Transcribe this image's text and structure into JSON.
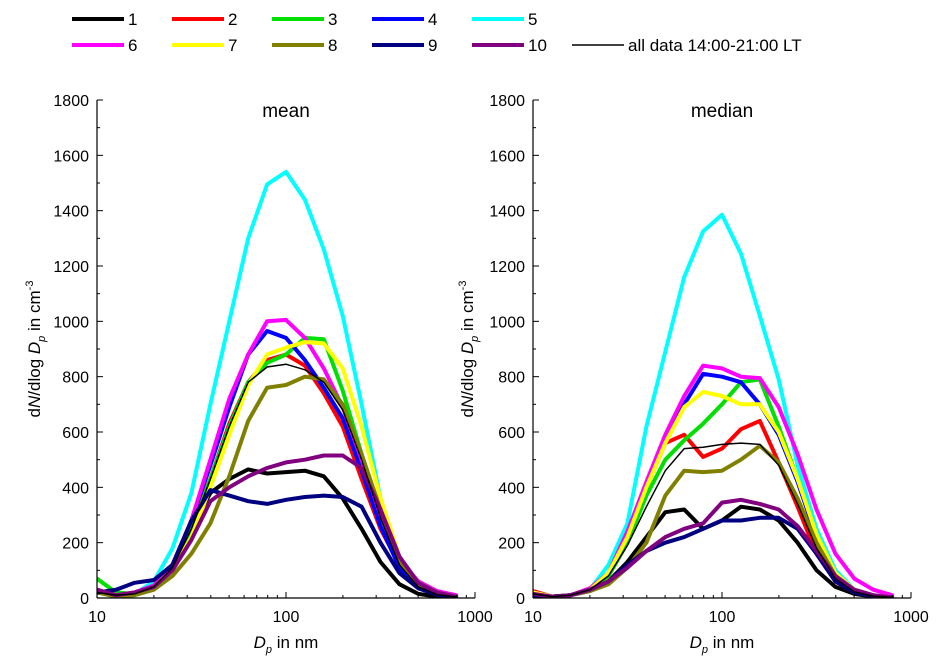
{
  "chart_data": [
    {
      "type": "line",
      "title": "mean",
      "xlabel": "D_p in nm",
      "xlabel_var": "D",
      "xlabel_sub": "p",
      "xlabel_unit": " in nm",
      "ylabel_prefix": "dN/dlog ",
      "ylabel_var": "D",
      "ylabel_sub": "p",
      "ylabel_unit": " in cm",
      "ylabel_exp": "-3",
      "xscale": "log",
      "xlim": [
        10,
        1000
      ],
      "ylim": [
        0,
        1800
      ],
      "xticks": [
        10,
        100,
        1000
      ],
      "yticks": [
        0,
        200,
        400,
        600,
        800,
        1000,
        1200,
        1400,
        1600,
        1800
      ],
      "x": [
        10,
        12.6,
        15.8,
        20,
        25.1,
        31.6,
        39.8,
        50.1,
        63.1,
        79.4,
        100,
        125.9,
        158.5,
        199.5,
        251.2,
        316.2,
        398.1,
        501.2,
        631,
        794.3
      ],
      "series": [
        {
          "name": "1",
          "color": "#000000",
          "values": [
            25,
            10,
            20,
            45,
            110,
            250,
            380,
            430,
            465,
            450,
            455,
            460,
            440,
            360,
            250,
            130,
            50,
            15,
            5,
            2
          ]
        },
        {
          "name": "2",
          "color": "#ff0000",
          "values": [
            20,
            10,
            15,
            40,
            110,
            260,
            430,
            630,
            780,
            860,
            880,
            840,
            740,
            620,
            430,
            250,
            120,
            45,
            15,
            5
          ]
        },
        {
          "name": "3",
          "color": "#00e000",
          "values": [
            70,
            20,
            15,
            40,
            110,
            250,
            430,
            620,
            780,
            850,
            880,
            940,
            935,
            750,
            520,
            300,
            130,
            45,
            15,
            5
          ]
        },
        {
          "name": "4",
          "color": "#0000ff",
          "values": [
            20,
            10,
            15,
            40,
            120,
            280,
            480,
            690,
            880,
            965,
            940,
            860,
            760,
            650,
            460,
            260,
            110,
            40,
            12,
            5
          ]
        },
        {
          "name": "5",
          "color": "#00ffff",
          "values": [
            20,
            10,
            15,
            60,
            180,
            380,
            700,
            1000,
            1300,
            1495,
            1540,
            1440,
            1260,
            1020,
            700,
            360,
            140,
            45,
            15,
            5
          ]
        },
        {
          "name": "6",
          "color": "#ff00ff",
          "values": [
            30,
            10,
            20,
            45,
            120,
            280,
            500,
            720,
            880,
            1000,
            1005,
            940,
            830,
            690,
            500,
            300,
            140,
            60,
            25,
            10
          ]
        },
        {
          "name": "7",
          "color": "#ffff00",
          "values": [
            20,
            10,
            15,
            40,
            100,
            220,
            400,
            590,
            770,
            880,
            905,
            925,
            920,
            830,
            620,
            360,
            150,
            55,
            20,
            5
          ]
        },
        {
          "name": "8",
          "color": "#808000",
          "values": [
            20,
            5,
            10,
            30,
            80,
            160,
            270,
            440,
            640,
            760,
            770,
            800,
            790,
            700,
            520,
            320,
            130,
            45,
            15,
            5
          ]
        },
        {
          "name": "9",
          "color": "#000080",
          "values": [
            20,
            30,
            55,
            65,
            120,
            280,
            390,
            370,
            350,
            340,
            355,
            365,
            370,
            365,
            330,
            200,
            90,
            35,
            12,
            5
          ]
        },
        {
          "name": "10",
          "color": "#800080",
          "values": [
            30,
            10,
            20,
            40,
            100,
            210,
            350,
            400,
            440,
            470,
            490,
            500,
            515,
            515,
            470,
            320,
            150,
            55,
            20,
            5
          ]
        },
        {
          "name": "all data 14:00-21:00 LT",
          "color": "#000000",
          "thin": true,
          "values": [
            20,
            10,
            15,
            40,
            110,
            250,
            430,
            620,
            780,
            835,
            845,
            825,
            780,
            680,
            500,
            290,
            120,
            40,
            12,
            4
          ]
        }
      ]
    },
    {
      "type": "line",
      "title": "median",
      "xlabel": "D_p in nm",
      "xlabel_var": "D",
      "xlabel_sub": "p",
      "xlabel_unit": " in nm",
      "ylabel_prefix": "dN/dlog ",
      "ylabel_var": "D",
      "ylabel_sub": "p",
      "ylabel_unit": " in cm",
      "ylabel_exp": "-3",
      "xscale": "log",
      "xlim": [
        10,
        1000
      ],
      "ylim": [
        0,
        1800
      ],
      "xticks": [
        10,
        100,
        1000
      ],
      "yticks": [
        0,
        200,
        400,
        600,
        800,
        1000,
        1200,
        1400,
        1600,
        1800
      ],
      "x": [
        10,
        12.6,
        15.8,
        20,
        25.1,
        31.6,
        39.8,
        50.1,
        63.1,
        79.4,
        100,
        125.9,
        158.5,
        199.5,
        251.2,
        316.2,
        398.1,
        501.2,
        631,
        794.3
      ],
      "series": [
        {
          "name": "1",
          "color": "#000000",
          "values": [
            10,
            5,
            10,
            25,
            60,
            130,
            220,
            310,
            320,
            250,
            280,
            330,
            320,
            280,
            200,
            100,
            40,
            15,
            5,
            2
          ]
        },
        {
          "name": "2",
          "color": "#ff0000",
          "values": [
            25,
            5,
            10,
            30,
            80,
            200,
            400,
            560,
            590,
            510,
            540,
            610,
            640,
            490,
            330,
            160,
            60,
            20,
            8,
            3
          ]
        },
        {
          "name": "3",
          "color": "#00e000",
          "values": [
            15,
            5,
            10,
            30,
            80,
            200,
            370,
            500,
            570,
            630,
            700,
            780,
            790,
            620,
            430,
            220,
            80,
            25,
            8,
            3
          ]
        },
        {
          "name": "4",
          "color": "#0000ff",
          "values": [
            15,
            5,
            10,
            30,
            90,
            220,
            400,
            580,
            700,
            810,
            800,
            780,
            700,
            590,
            420,
            220,
            80,
            25,
            8,
            3
          ]
        },
        {
          "name": "5",
          "color": "#00ffff",
          "values": [
            20,
            5,
            10,
            30,
            120,
            270,
            620,
            890,
            1160,
            1325,
            1385,
            1245,
            1020,
            790,
            480,
            250,
            100,
            30,
            10,
            3
          ]
        },
        {
          "name": "6",
          "color": "#ff00ff",
          "values": [
            20,
            5,
            10,
            35,
            90,
            240,
            420,
            590,
            730,
            840,
            830,
            800,
            795,
            690,
            520,
            320,
            160,
            70,
            30,
            10
          ]
        },
        {
          "name": "7",
          "color": "#ffff00",
          "values": [
            20,
            5,
            10,
            30,
            90,
            220,
            400,
            560,
            690,
            745,
            730,
            700,
            700,
            600,
            430,
            230,
            90,
            30,
            10,
            3
          ]
        },
        {
          "name": "8",
          "color": "#808000",
          "values": [
            10,
            5,
            10,
            25,
            50,
            110,
            200,
            370,
            460,
            455,
            460,
            500,
            550,
            490,
            360,
            200,
            80,
            25,
            8,
            3
          ]
        },
        {
          "name": "9",
          "color": "#000080",
          "values": [
            10,
            5,
            10,
            30,
            60,
            120,
            170,
            200,
            220,
            250,
            280,
            280,
            290,
            290,
            250,
            160,
            60,
            20,
            6,
            2
          ]
        },
        {
          "name": "10",
          "color": "#800080",
          "values": [
            15,
            5,
            10,
            30,
            60,
            110,
            170,
            220,
            250,
            270,
            345,
            355,
            340,
            320,
            260,
            170,
            80,
            30,
            10,
            3
          ]
        },
        {
          "name": "all data 14:00-21:00 LT",
          "color": "#000000",
          "thin": true,
          "values": [
            15,
            5,
            10,
            30,
            80,
            190,
            330,
            460,
            540,
            545,
            555,
            560,
            555,
            480,
            340,
            180,
            70,
            22,
            7,
            2
          ]
        }
      ]
    }
  ],
  "legend": {
    "row1": [
      "1",
      "2",
      "3",
      "4",
      "5"
    ],
    "row2": [
      "6",
      "7",
      "8",
      "9",
      "10",
      "all data 14:00-21:00 LT"
    ]
  }
}
